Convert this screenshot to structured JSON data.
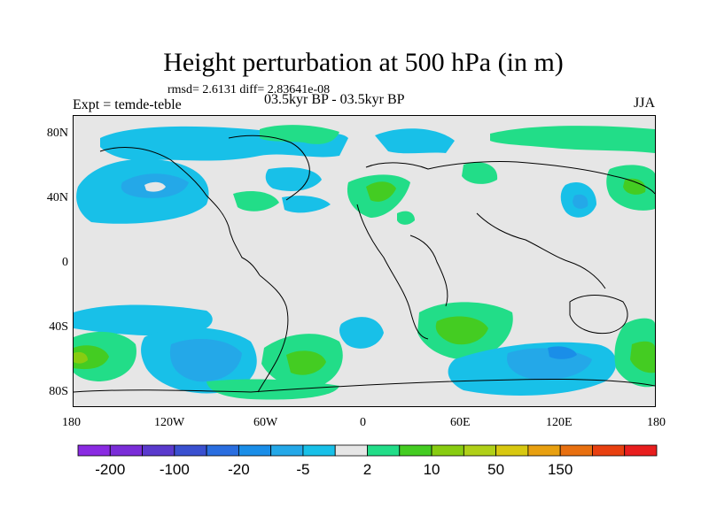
{
  "title": "Height perturbation at 500 hPa (in m)",
  "subtitle": {
    "stats": "rmsd= 2.6131 diff= 2.83641e-08",
    "experiment": "Expt = temde-teble",
    "center": "03.5kyr BP - 03.5kyr BP",
    "season": "JJA"
  },
  "axes": {
    "lat_ticks": [
      "80N",
      "40N",
      "0",
      "40S",
      "80S"
    ],
    "lon_ticks": [
      "180",
      "120W",
      "60W",
      "0",
      "60E",
      "120E",
      "180"
    ]
  },
  "colorbar": {
    "colors": [
      "#8a2be2",
      "#7a2dd8",
      "#5a3acd",
      "#3a50d0",
      "#2a6ee0",
      "#1a8ee8",
      "#24a8e8",
      "#18c0e8",
      "#e6e6e6",
      "#22dd88",
      "#44cc22",
      "#88cc11",
      "#b0d018",
      "#d8c810",
      "#e8a010",
      "#e87010",
      "#e84010",
      "#e81e1e"
    ],
    "labels": [
      "-200",
      "-100",
      "-20",
      "-5",
      "2",
      "10",
      "50",
      "150"
    ],
    "label_boundaries": [
      1,
      3,
      5,
      7,
      9,
      11,
      13,
      15
    ]
  },
  "map_colors": {
    "background": "#e6e6e6",
    "light_blue": "#18c0e8",
    "mid_blue": "#24a8e8",
    "blue": "#1a8ee8",
    "green_light": "#22dd88",
    "green": "#44cc22",
    "yellow_green": "#88cc11",
    "coast": "#000000"
  }
}
